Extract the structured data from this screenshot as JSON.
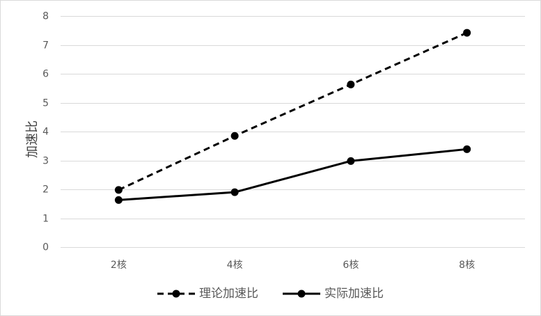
{
  "chart_data": {
    "type": "line",
    "categories": [
      "2核",
      "4核",
      "6核",
      "8核"
    ],
    "series": [
      {
        "name": "理论加速比",
        "values": [
          1.98,
          3.85,
          5.63,
          7.42
        ],
        "color": "#000000",
        "line_style": "dashed",
        "marker": "circle"
      },
      {
        "name": "实际加速比",
        "values": [
          1.63,
          1.9,
          2.98,
          3.39
        ],
        "color": "#000000",
        "line_style": "solid",
        "marker": "circle"
      }
    ],
    "title": "",
    "xlabel": "",
    "ylabel": "加速比",
    "ylim": [
      0,
      8
    ],
    "yticks": [
      "0",
      "1",
      "2",
      "3",
      "4",
      "5",
      "6",
      "7",
      "8"
    ],
    "grid": true,
    "legend_position": "bottom",
    "gridline_color": "#d9d9d9",
    "axis_color": "#d9d9d9"
  }
}
